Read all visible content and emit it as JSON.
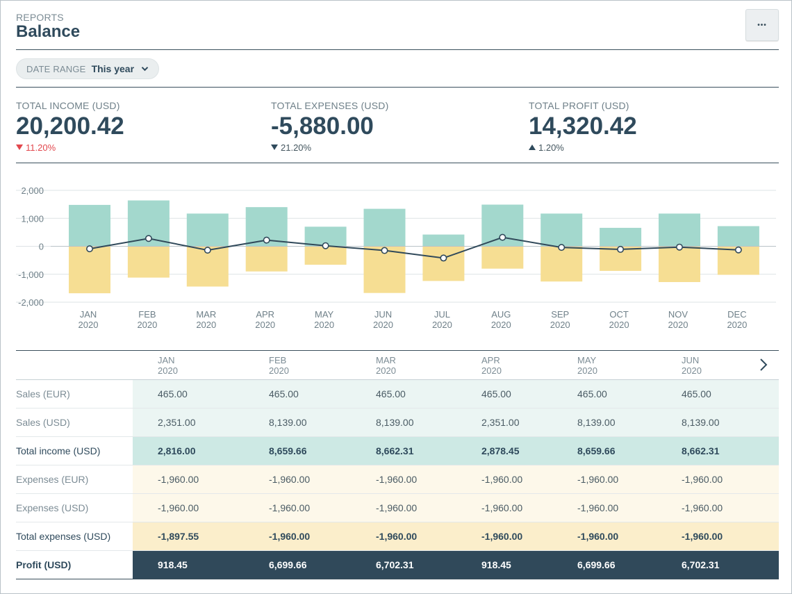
{
  "header": {
    "eyebrow": "REPORTS",
    "title": "Balance",
    "more_label": "•••"
  },
  "filter": {
    "label": "DATE RANGE",
    "value": "This year"
  },
  "kpis": [
    {
      "label": "TOTAL INCOME (USD)",
      "value": "20,200.42",
      "change": "11.20%",
      "direction": "down",
      "color": "#e2474d"
    },
    {
      "label": "TOTAL EXPENSES (USD)",
      "value": "-5,880.00",
      "change": "21.20%",
      "direction": "down",
      "color": "#44565f"
    },
    {
      "label": "TOTAL PROFIT (USD)",
      "value": "14,320.42",
      "change": "1.20%",
      "direction": "up",
      "color": "#44565f"
    }
  ],
  "chart_data": {
    "type": "bar",
    "categories": [
      "JAN",
      "FEB",
      "MAR",
      "APR",
      "MAY",
      "JUN",
      "JUL",
      "AUG",
      "SEP",
      "OCT",
      "NOV",
      "DEC"
    ],
    "category_year": "2020",
    "ylim": [
      -2000,
      2000
    ],
    "yticks": [
      "2,000",
      "1,000",
      "0",
      "-1,000",
      "-2,000"
    ],
    "grid": true,
    "series": [
      {
        "type": "bar",
        "values": [
          1480,
          1640,
          1170,
          1400,
          700,
          1340,
          420,
          1490,
          1170,
          660,
          1170,
          720
        ],
        "color": "#a3d8cd"
      },
      {
        "type": "bar",
        "values": [
          -1680,
          -1120,
          -1440,
          -900,
          -660,
          -1670,
          -1240,
          -800,
          -1260,
          -880,
          -1280,
          -1020
        ],
        "color": "#f6de93"
      },
      {
        "type": "line",
        "values": [
          -90,
          280,
          -140,
          220,
          20,
          -150,
          -420,
          320,
          -40,
          -110,
          -30,
          -130
        ],
        "color": "#30495a"
      }
    ]
  },
  "table": {
    "months": [
      {
        "name": "JAN",
        "year": "2020"
      },
      {
        "name": "FEB",
        "year": "2020"
      },
      {
        "name": "MAR",
        "year": "2020"
      },
      {
        "name": "APR",
        "year": "2020"
      },
      {
        "name": "MAY",
        "year": "2020"
      },
      {
        "name": "JUN",
        "year": "2020"
      }
    ],
    "rows": [
      {
        "label": "Sales (EUR)",
        "values": [
          "465.00",
          "465.00",
          "465.00",
          "465.00",
          "465.00",
          "465.00"
        ]
      },
      {
        "label": "Sales (USD)",
        "values": [
          "2,351.00",
          "8,139.00",
          "8,139.00",
          "2,351.00",
          "8,139.00",
          "8,139.00"
        ]
      },
      {
        "label": "Total income (USD)",
        "values": [
          "2,816.00",
          "8,659.66",
          "8,662.31",
          "2,878.45",
          "8,659.66",
          "8,662.31"
        ]
      },
      {
        "label": "Expenses (EUR)",
        "values": [
          "-1,960.00",
          "-1,960.00",
          "-1,960.00",
          "-1,960.00",
          "-1,960.00",
          "-1,960.00"
        ]
      },
      {
        "label": "Expenses (USD)",
        "values": [
          "-1,960.00",
          "-1,960.00",
          "-1,960.00",
          "-1,960.00",
          "-1,960.00",
          "-1,960.00"
        ]
      },
      {
        "label": "Total expenses (USD)",
        "values": [
          "-1,897.55",
          "-1,960.00",
          "-1,960.00",
          "-1,960.00",
          "-1,960.00",
          "-1,960.00"
        ]
      },
      {
        "label": "Profit (USD)",
        "values": [
          "918.45",
          "6,699.66",
          "6,702.31",
          "918.45",
          "6,699.66",
          "6,702.31"
        ]
      }
    ]
  }
}
